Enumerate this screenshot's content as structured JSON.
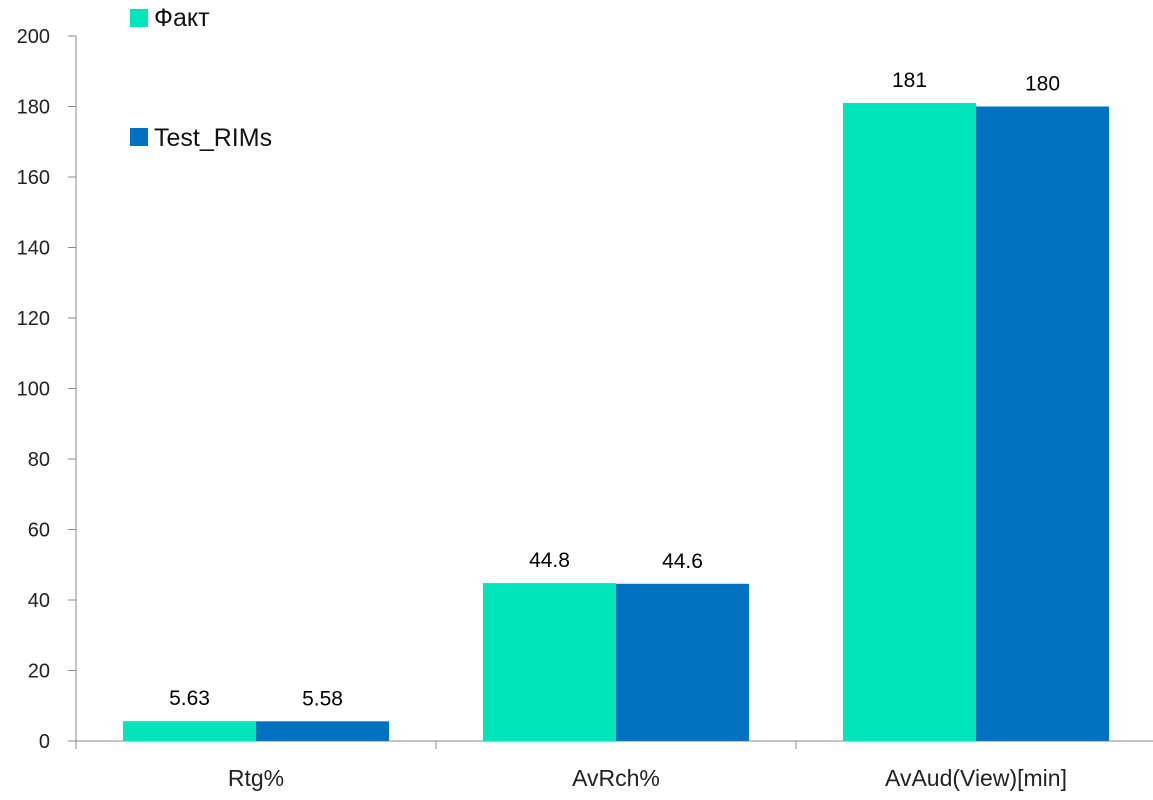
{
  "chart_data": {
    "type": "bar",
    "categories": [
      "Rtg%",
      "AvRch%",
      "AvAud(View)[min]"
    ],
    "series": [
      {
        "name": "Факт",
        "values": [
          5.63,
          44.8,
          181
        ],
        "labels": [
          "5.63",
          "44.8",
          "181"
        ],
        "color": "#00E6BA"
      },
      {
        "name": "Test_RIMs",
        "values": [
          5.58,
          44.6,
          180
        ],
        "labels": [
          "5.58",
          "44.6",
          "180"
        ],
        "color": "#0070C0"
      }
    ],
    "ylim": [
      0,
      200
    ],
    "yticks": [
      0,
      20,
      40,
      60,
      80,
      100,
      120,
      140,
      160,
      180,
      200
    ],
    "xlabel": "",
    "ylabel": "",
    "grid": false,
    "legend": "top-left"
  }
}
